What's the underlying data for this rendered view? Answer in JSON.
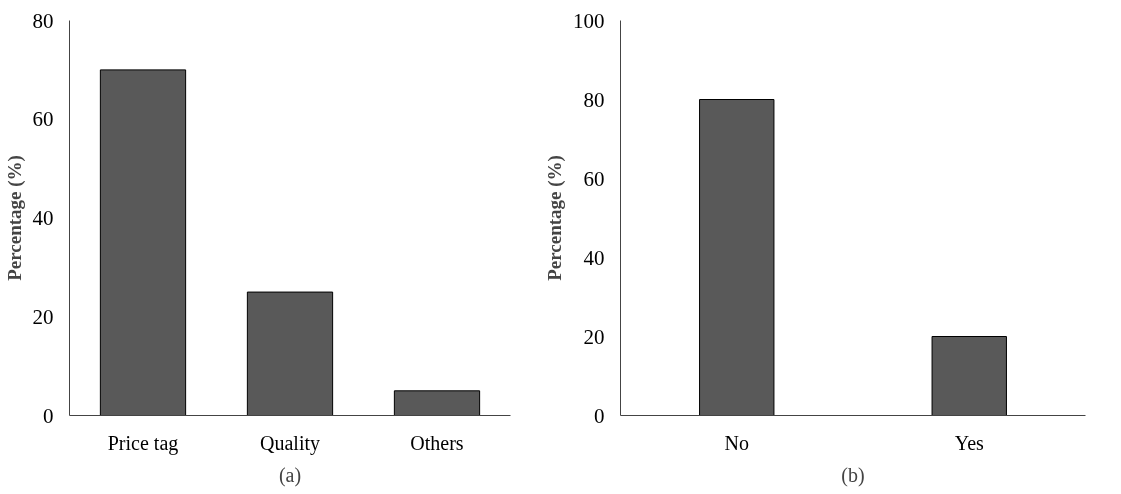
{
  "chart_data": [
    {
      "type": "bar",
      "categories": [
        "Price tag",
        "Quality",
        "Others"
      ],
      "values": [
        70,
        25,
        5
      ],
      "color": "#595959",
      "ylabel": "Percentage (%)",
      "ylim": [
        0,
        80
      ],
      "yticks": [
        0,
        20,
        40,
        60,
        80
      ],
      "grid": false,
      "annotations": [
        "(a)"
      ]
    },
    {
      "type": "bar",
      "categories": [
        "No",
        "Yes"
      ],
      "values": [
        80,
        20
      ],
      "color": "#595959",
      "ylabel": "Percentage (%)",
      "ylim": [
        0,
        100
      ],
      "yticks": [
        0,
        20,
        40,
        60,
        80,
        100
      ],
      "grid": false,
      "annotations": [
        "(b)"
      ]
    }
  ]
}
